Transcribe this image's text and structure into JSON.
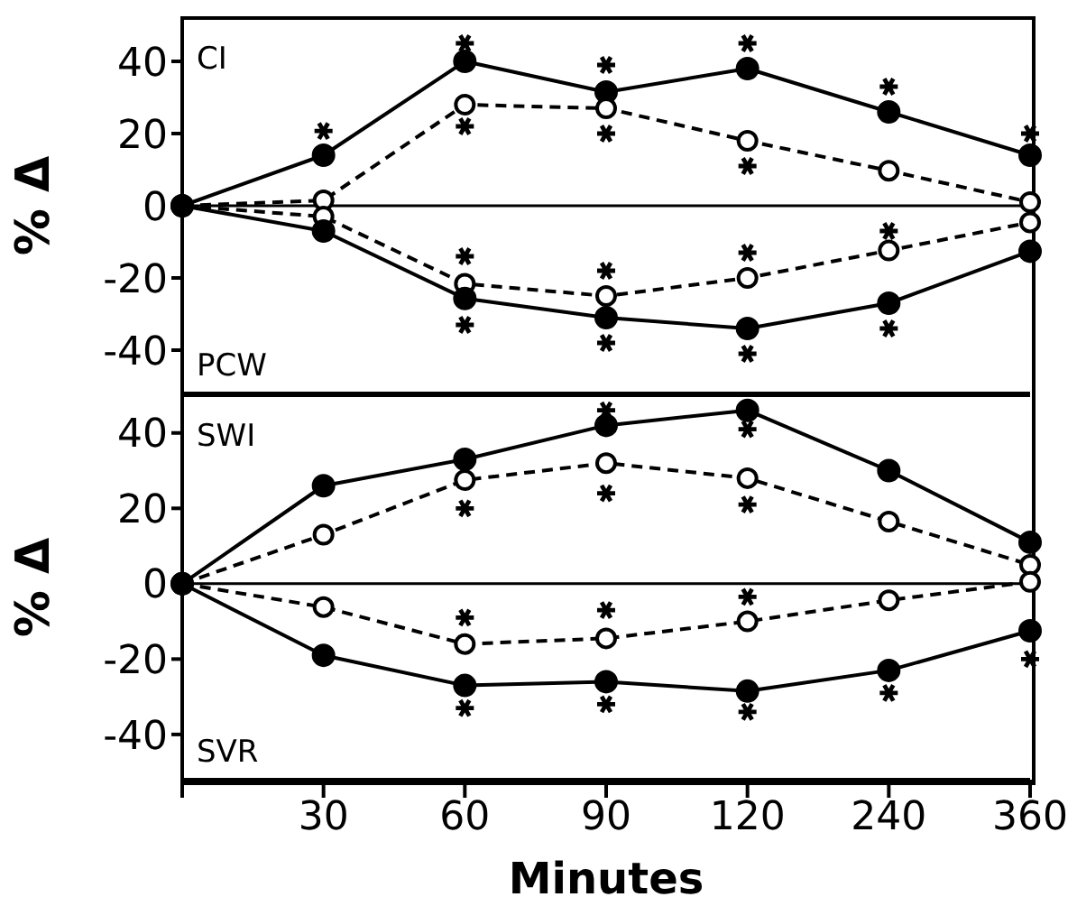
{
  "chart_data": [
    {
      "type": "line",
      "ylabel": "% Δ",
      "categories": [
        null,
        "30",
        "60",
        "90",
        "120",
        "240",
        "360"
      ],
      "ylim": [
        -52,
        52
      ],
      "yticks": [
        -40,
        -20,
        0,
        20,
        40
      ],
      "tick_labels": "y",
      "marker": "circle",
      "ref_lines": [
        {
          "axis": "y",
          "value": 0
        }
      ],
      "series": [
        {
          "color": "#000000",
          "line_style": "solid",
          "values": [
            0,
            14,
            40,
            31.5,
            38,
            26,
            14
          ]
        },
        {
          "color": "#000000",
          "line_style": "dashed",
          "values": [
            0,
            1.5,
            28,
            27,
            18,
            9.7,
            1
          ]
        },
        {
          "color": "#000000",
          "line_style": "dashed",
          "values": [
            0,
            -3,
            -21.6,
            -25,
            -20,
            -12.4,
            -4.6
          ]
        },
        {
          "color": "#000000",
          "line_style": "solid",
          "values": [
            0,
            -7,
            -25.7,
            -31,
            -34,
            -27,
            -12.6
          ]
        },
        {
          "type": "scatter",
          "marker": "cross",
          "color": "#000000",
          "values": [
            null,
            20.7,
            45,
            39,
            45,
            33,
            20
          ]
        },
        {
          "type": "scatter",
          "marker": "cross",
          "color": "#000000",
          "values": [
            null,
            null,
            22,
            20,
            11,
            null,
            null
          ]
        },
        {
          "type": "scatter",
          "marker": "cross",
          "color": "#000000",
          "values": [
            null,
            null,
            -14,
            -18,
            -13,
            -7,
            null
          ]
        },
        {
          "type": "scatter",
          "marker": "cross",
          "color": "#000000",
          "values": [
            null,
            null,
            -33,
            -38,
            -41,
            -34,
            null
          ]
        }
      ],
      "annotations": [
        "CI",
        "PCW"
      ]
    },
    {
      "type": "line",
      "ylabel": "% Δ",
      "xlabel": "Minutes",
      "categories": [
        null,
        "30",
        "60",
        "90",
        "120",
        "240",
        "360"
      ],
      "ylim": [
        -52,
        50
      ],
      "yticks": [
        -40,
        -20,
        0,
        20,
        40
      ],
      "marker": "circle",
      "ref_lines": [
        {
          "axis": "y",
          "value": 0
        }
      ],
      "series": [
        {
          "color": "#000000",
          "line_style": "solid",
          "values": [
            0,
            26,
            33,
            42,
            46,
            30,
            11
          ]
        },
        {
          "color": "#000000",
          "line_style": "dashed",
          "values": [
            0,
            13,
            27.5,
            32,
            28,
            16.5,
            5
          ]
        },
        {
          "color": "#000000",
          "line_style": "dashed",
          "values": [
            0,
            -6.2,
            -16,
            -14.5,
            -10,
            -4.4,
            0.5
          ]
        },
        {
          "color": "#000000",
          "line_style": "solid",
          "values": [
            0,
            -19,
            -27,
            -26,
            -28.5,
            -23,
            -12.5
          ]
        },
        {
          "type": "scatter",
          "marker": "cross",
          "color": "#000000",
          "values": [
            null,
            null,
            null,
            46,
            41,
            null,
            null
          ]
        },
        {
          "type": "scatter",
          "marker": "cross",
          "color": "#000000",
          "values": [
            null,
            null,
            20,
            24,
            21,
            null,
            null
          ]
        },
        {
          "type": "scatter",
          "marker": "cross",
          "color": "#000000",
          "values": [
            null,
            null,
            -9,
            -7,
            -3.5,
            null,
            null
          ]
        },
        {
          "type": "scatter",
          "marker": "cross",
          "color": "#000000",
          "values": [
            null,
            null,
            -33,
            -32,
            -34,
            -29,
            -20
          ]
        }
      ],
      "annotations": [
        "SWI",
        "SVR"
      ]
    }
  ]
}
